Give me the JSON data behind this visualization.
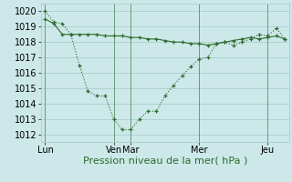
{
  "line1_y": [
    1020,
    1019.3,
    1019.2,
    1018.5,
    1016.5,
    1014.8,
    1014.5,
    1014.5,
    1013.0,
    1012.3,
    1012.3,
    1013.0,
    1013.5,
    1013.5,
    1014.5,
    1015.2,
    1015.8,
    1016.4,
    1016.9,
    1017.0,
    1017.9,
    1018.0,
    1017.8,
    1018.0,
    1018.2,
    1018.5,
    1018.4,
    1018.9,
    1018.2
  ],
  "line2_y": [
    1019.5,
    1019.2,
    1018.5,
    1018.5,
    1018.5,
    1018.5,
    1018.5,
    1018.4,
    1018.4,
    1018.4,
    1018.3,
    1018.3,
    1018.2,
    1018.2,
    1018.1,
    1018.0,
    1018.0,
    1017.9,
    1017.9,
    1017.8,
    1017.9,
    1018.0,
    1018.1,
    1018.2,
    1018.3,
    1018.2,
    1018.3,
    1018.4,
    1018.2
  ],
  "xticks_pos": [
    0,
    8,
    10,
    18,
    26
  ],
  "xtick_labels": [
    "Lun",
    "Ven",
    "Mar",
    "Mer",
    "Jeu"
  ],
  "yticks": [
    1012,
    1013,
    1014,
    1015,
    1016,
    1017,
    1018,
    1019,
    1020
  ],
  "ylim": [
    1011.5,
    1020.5
  ],
  "xlim": [
    -0.5,
    28.5
  ],
  "line_color": "#2d6a2d",
  "bg_color": "#cce8e8",
  "grid_color": "#aacece",
  "xlabel": "Pression niveau de la mer( hPa )",
  "xlabel_fontsize": 8,
  "tick_fontsize": 7
}
